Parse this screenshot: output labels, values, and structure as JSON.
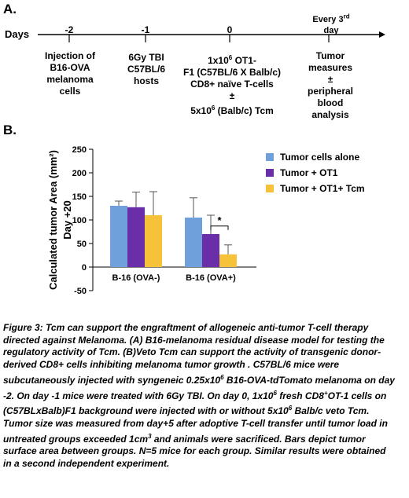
{
  "panel_a": {
    "label": "A.",
    "days_label": "Days",
    "every_third_day": "Every 3rd day",
    "ticks": [
      "-2",
      "-1",
      "0"
    ],
    "events": [
      {
        "lines": [
          "Injection of",
          "B16-OVA",
          "melanoma",
          "cells"
        ]
      },
      {
        "lines": [
          "6Gy TBI",
          "C57BL/6",
          "hosts"
        ]
      },
      {
        "lines": [
          "1x10^6 OT1-",
          "F1 (C57BL/6 X Balb/c)",
          "CD8+ naïve T-cells",
          "±",
          "5x10^6 (Balb/c) Tcm"
        ]
      },
      {
        "lines": [
          "Tumor",
          "measures",
          "±",
          "peripheral",
          "blood",
          "analysis"
        ]
      }
    ]
  },
  "panel_b": {
    "label": "B."
  },
  "chart_data": {
    "type": "bar",
    "ylabel": "Calculated tumor Area (mm²) Day +20",
    "ylim": [
      -50,
      250
    ],
    "yticks": [
      -50,
      0,
      50,
      100,
      150,
      200,
      250
    ],
    "categories": [
      "B-16 (OVA-)",
      "B-16 (OVA+)"
    ],
    "series": [
      {
        "name": "Tumor cells alone",
        "values": [
          130,
          105
        ],
        "errors": [
          10,
          42
        ],
        "color": "#6fa0dc"
      },
      {
        "name": "Tumor + OT1",
        "values": [
          127,
          70
        ],
        "errors": [
          32,
          40
        ],
        "color": "#6a2fa8"
      },
      {
        "name": "Tumor + OT1+ Tcm",
        "values": [
          110,
          27
        ],
        "errors": [
          50,
          20
        ],
        "color": "#f5c23a"
      }
    ],
    "annotation": "*",
    "legend_position": "top-right"
  },
  "caption": {
    "text": "Figure 3: Tcm can support the engraftment of allogeneic anti-tumor T-cell therapy directed against Melanoma. (A) B16-melanoma residual disease model for testing the regulatory activity of Tcm. (B)Veto Tcm can support the activity of transgenic donor-derived CD8+ cells inhibiting melanoma tumor growth . C57BL/6 mice were subcutaneously injected with syngeneic 0.25x10^6 B16-OVA-tdTomato melanoma on day -2. On day -1 mice were treated with 6Gy TBI. On day 0, 1x10^6 fresh CD8+OT-1 cells on (C57BLxBalb)F1 background were injected with or without 5x10^6 Balb/c veto Tcm. Tumor size was measured from day+5 after adoptive T-cell transfer until tumor load in untreated groups exceeded 1cm^3 and animals were sacrificed. Bars depict tumor surface area between groups. N=5 mice for each group. Similar results were obtained in a second independent experiment."
  }
}
